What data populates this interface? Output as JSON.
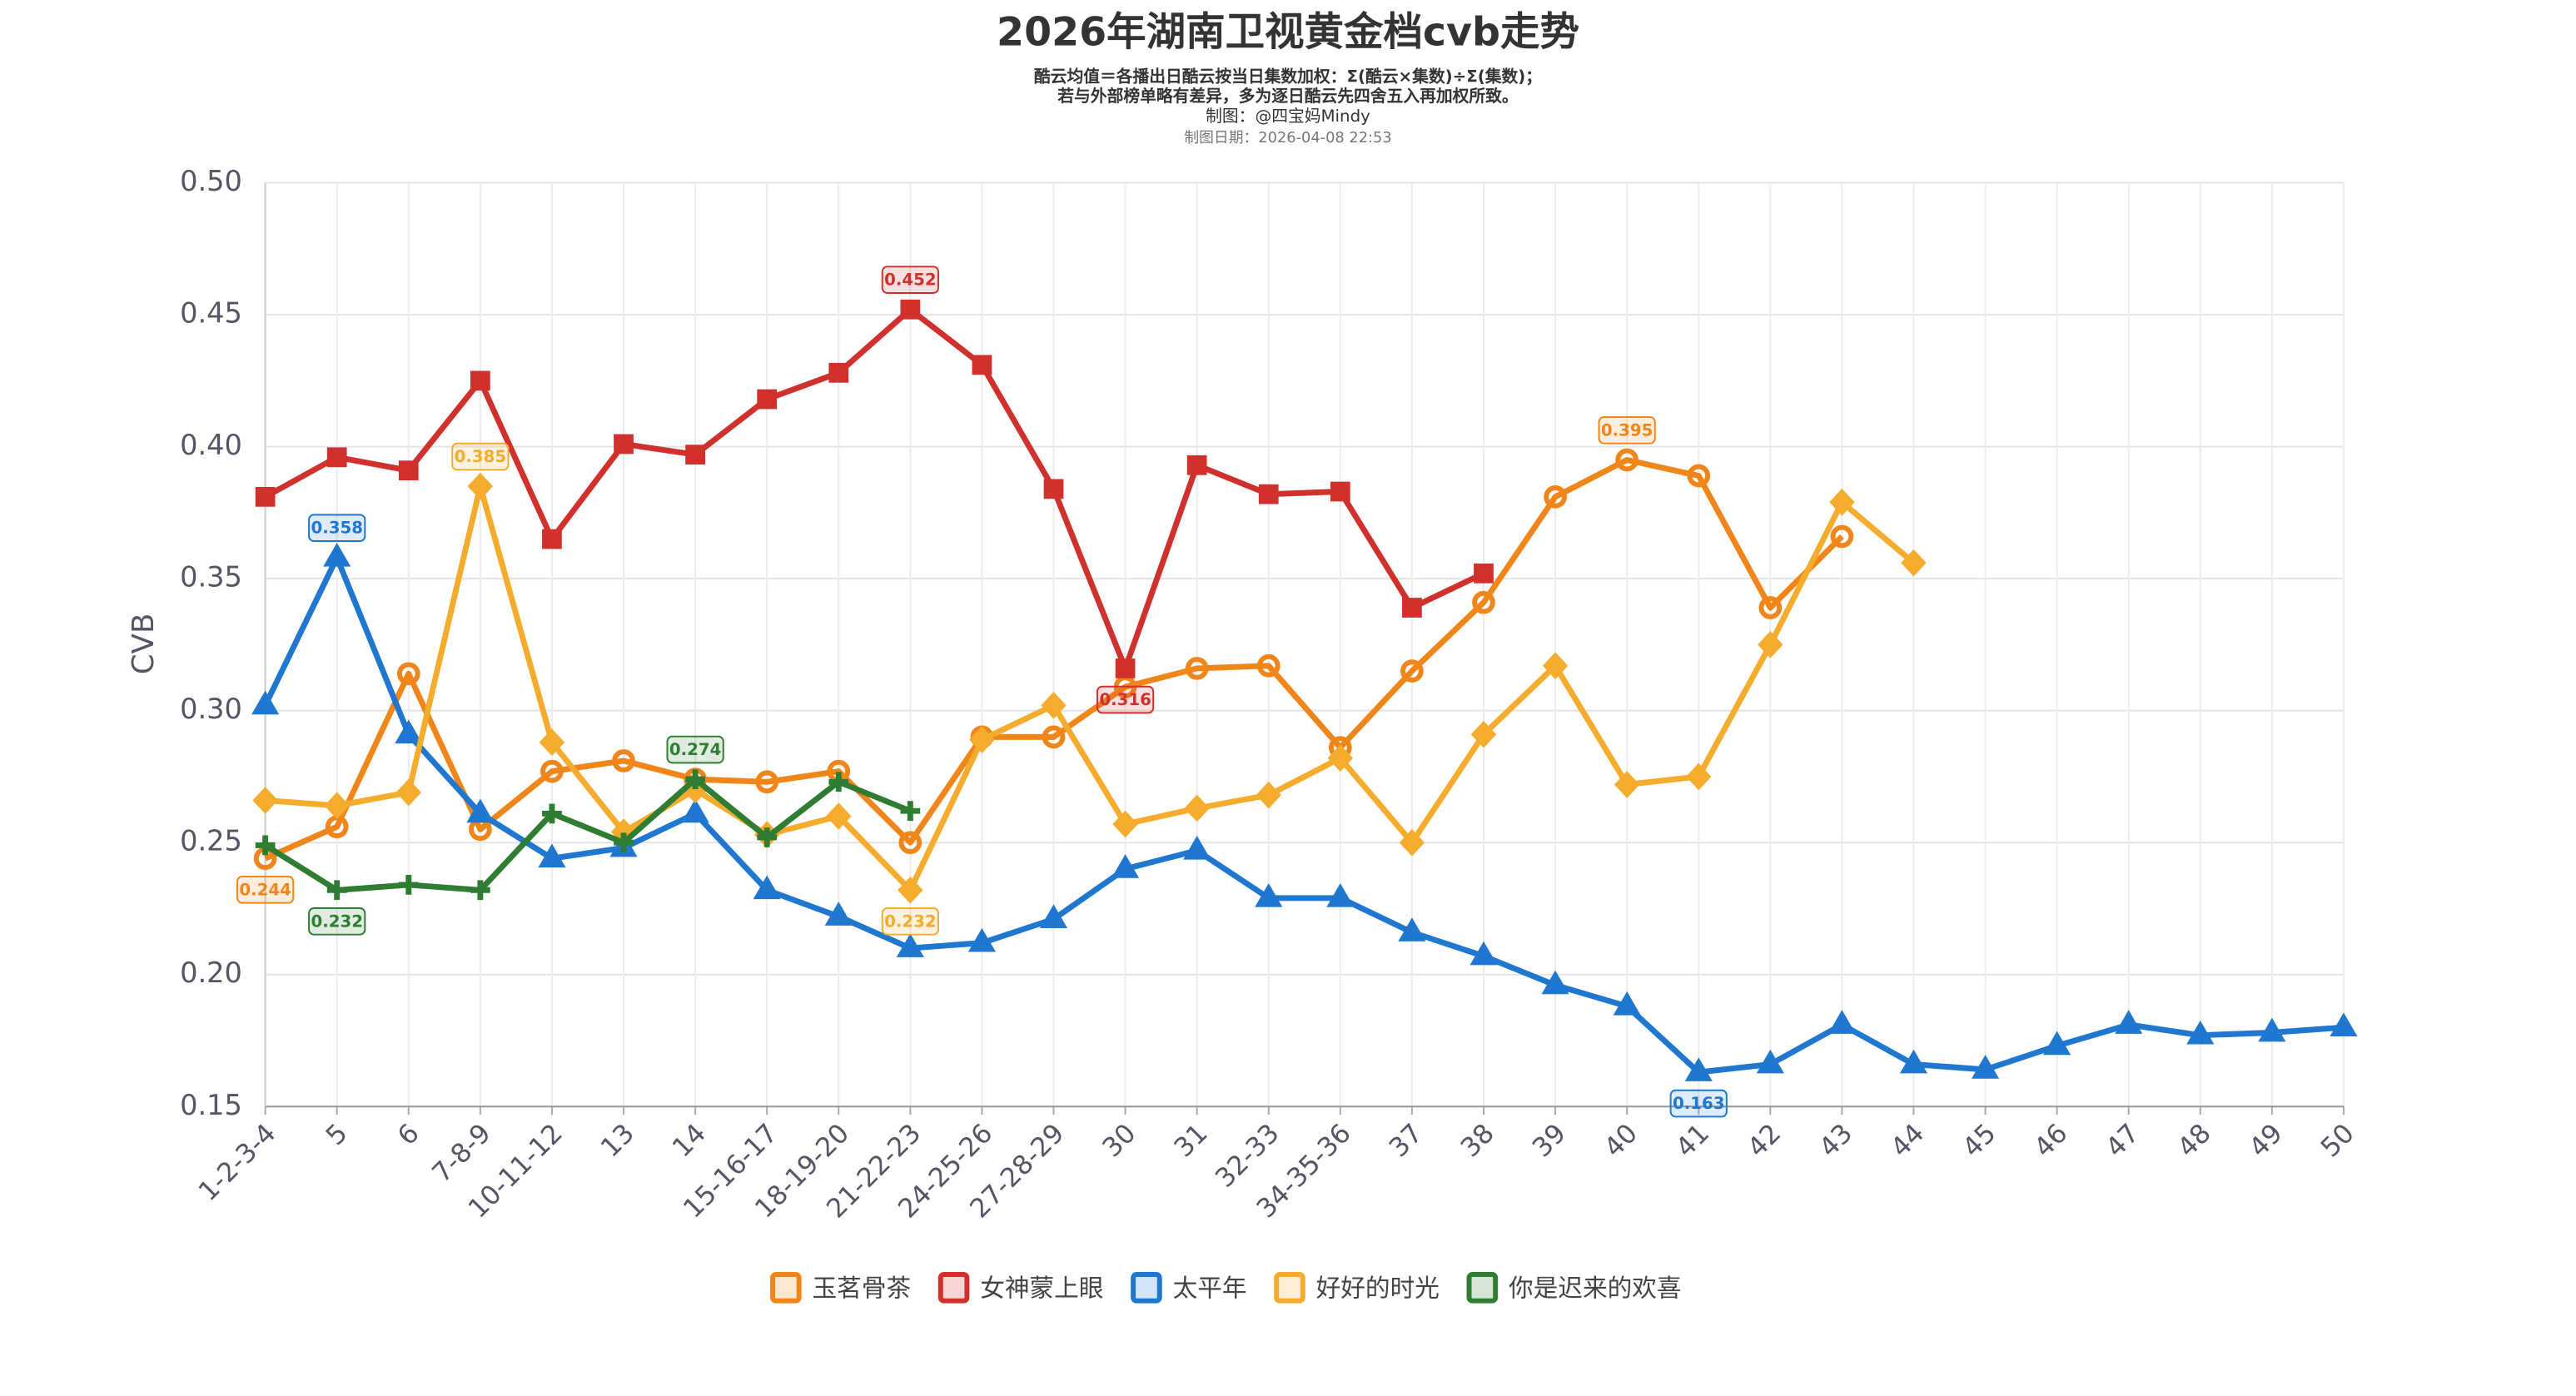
{
  "chart_data": {
    "type": "line",
    "title": "2026年湖南卫视黄金档cvb走势",
    "subtitle": [
      "酷云均值＝各播出日酷云按当日集数加权：Σ(酷云×集数)÷Σ(集数)；",
      "若与外部榜单略有差异，多为逐日酷云先四舍五入再加权所致。",
      "制图：@四宝妈Mindy",
      "制图日期：2026-04-08 22:53"
    ],
    "y_label": "CVB",
    "categories": [
      "1-2-3-4",
      "5",
      "6",
      "7-8-9",
      "10-11-12",
      "13",
      "14",
      "15-16-17",
      "18-19-20",
      "21-22-23",
      "24-25-26",
      "27-28-29",
      "30",
      "31",
      "32-33",
      "34-35-36",
      "37",
      "38",
      "39",
      "40",
      "41",
      "42",
      "43",
      "44",
      "45",
      "46",
      "47",
      "48",
      "49",
      "50"
    ],
    "series": [
      {
        "name": "玉茗骨茶",
        "color": "#f0861a",
        "marker": "circle",
        "values": [
          0.244,
          0.256,
          0.314,
          0.255,
          0.277,
          0.281,
          0.274,
          0.273,
          0.277,
          0.25,
          0.29,
          0.29,
          0.309,
          0.316,
          0.317,
          0.286,
          0.315,
          0.341,
          0.381,
          0.395,
          0.389,
          0.339,
          0.366,
          null,
          null,
          null,
          null,
          null,
          null,
          null
        ]
      },
      {
        "name": "女神蒙上眼",
        "color": "#d0312d",
        "marker": "square",
        "values": [
          0.381,
          0.396,
          0.391,
          0.425,
          0.365,
          0.401,
          0.397,
          0.418,
          0.428,
          0.452,
          0.431,
          0.384,
          0.316,
          0.393,
          0.382,
          0.383,
          0.339,
          0.352,
          null,
          null,
          null,
          null,
          null,
          null,
          null,
          null,
          null,
          null,
          null,
          null
        ]
      },
      {
        "name": "太平年",
        "color": "#1f77d0",
        "marker": "triangle",
        "values": [
          0.302,
          0.358,
          0.291,
          0.261,
          0.244,
          0.248,
          0.261,
          0.232,
          0.222,
          0.21,
          0.212,
          0.221,
          0.24,
          0.247,
          0.229,
          0.229,
          0.216,
          0.207,
          0.196,
          0.188,
          0.163,
          0.166,
          0.181,
          0.166,
          0.164,
          0.173,
          0.181,
          0.177,
          0.178,
          0.18
        ]
      },
      {
        "name": "好好的时光",
        "color": "#f5ab2c",
        "marker": "diamond",
        "values": [
          0.266,
          0.264,
          0.269,
          0.385,
          0.288,
          0.254,
          0.27,
          0.253,
          0.26,
          0.232,
          0.289,
          0.302,
          0.257,
          0.263,
          0.268,
          0.282,
          0.25,
          0.291,
          0.317,
          0.272,
          0.275,
          0.325,
          0.379,
          0.356,
          null,
          null,
          null,
          null,
          null,
          null
        ]
      },
      {
        "name": "你是迟来的欢喜",
        "color": "#2e7d32",
        "marker": "plus",
        "values": [
          0.249,
          0.232,
          0.234,
          0.232,
          0.261,
          0.25,
          0.274,
          0.252,
          0.273,
          0.262,
          null,
          null,
          null,
          null,
          null,
          null,
          null,
          null,
          null,
          null,
          null,
          null,
          null,
          null,
          null,
          null,
          null,
          null,
          null,
          null
        ]
      }
    ],
    "ylim": [
      0.15,
      0.5
    ],
    "yticks": [
      {
        "value": 0.15,
        "label": "0.15"
      },
      {
        "value": 0.2,
        "label": "0.20"
      },
      {
        "value": 0.25,
        "label": "0.25"
      },
      {
        "value": 0.3,
        "label": "0.30"
      },
      {
        "value": 0.35,
        "label": "0.35"
      },
      {
        "value": 0.4,
        "label": "0.40"
      },
      {
        "value": 0.45,
        "label": "0.45"
      },
      {
        "value": 0.5,
        "label": "0.50"
      }
    ],
    "grid": true,
    "legend": "bottom"
  }
}
